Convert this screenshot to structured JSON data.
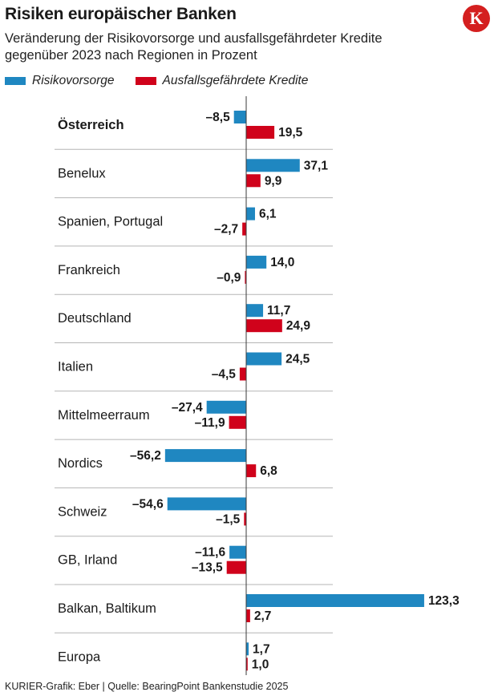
{
  "title": "Risiken europäischer Banken",
  "subtitle": "Veränderung der Risikovorsorge und ausfallsgefährdeter Kredite gegenüber 2023 nach Regionen in Prozent",
  "logo_letter": "K",
  "footer": "KURIER-Grafik: Eber | Quelle: BearingPoint Bankenstudie 2025",
  "colors": {
    "blue": "#1f87c1",
    "red": "#d0021b",
    "grid": "#b5b5b5",
    "logo": "#d41f1f"
  },
  "chart_data": {
    "type": "bar",
    "orientation": "horizontal",
    "title": "Risiken europäischer Banken",
    "subtitle": "Veränderung der Risikovorsorge und ausfallsgefährdeter Kredite gegenüber 2023 nach Regionen in Prozent",
    "xlabel": "",
    "ylabel": "",
    "xlim": [
      -60,
      125
    ],
    "legend_position": "top-left",
    "highlight_category": "Österreich",
    "categories": [
      "Österreich",
      "Benelux",
      "Spanien, Portugal",
      "Frankreich",
      "Deutschland",
      "Italien",
      "Mittelmeerraum",
      "Nordics",
      "Schweiz",
      "GB, Irland",
      "Balkan, Baltikum",
      "Europa"
    ],
    "series": [
      {
        "name": "Risikovorsorge",
        "color": "#1f87c1",
        "values": [
          -8.5,
          37.1,
          6.1,
          14.0,
          11.7,
          24.5,
          -27.4,
          -56.2,
          -54.6,
          -11.6,
          123.3,
          1.7
        ],
        "labels": [
          "–8,5",
          "37,1",
          "6,1",
          "14,0",
          "11,7",
          "24,5",
          "–27,4",
          "–56,2",
          "–54,6",
          "–11,6",
          "123,3",
          "1,7"
        ]
      },
      {
        "name": "Ausfallsgefährdete Kredite",
        "color": "#d0021b",
        "values": [
          19.5,
          9.9,
          -2.7,
          -0.9,
          24.9,
          -4.5,
          -11.9,
          6.8,
          -1.5,
          -13.5,
          2.7,
          1.0
        ],
        "labels": [
          "19,5",
          "9,9",
          "–2,7",
          "–0,9",
          "24,9",
          "–4,5",
          "–11,9",
          "6,8",
          "–1,5",
          "–13,5",
          "2,7",
          "1,0"
        ]
      }
    ]
  }
}
